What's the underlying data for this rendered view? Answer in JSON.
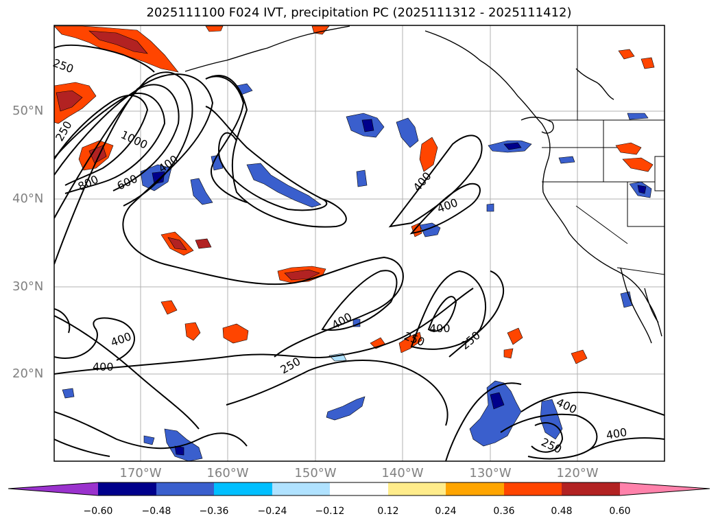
{
  "title": "2025111100 F024 IVT, precipitation PC (2025111312 - 2025111412)",
  "lat_labels": [
    "50°N",
    "40°N",
    "30°N",
    "20°N"
  ],
  "lon_labels": [
    "170°W",
    "160°W",
    "150°W",
    "140°W",
    "130°W",
    "120°W"
  ],
  "contour_labels": [
    "250",
    "1000",
    "800",
    "600",
    "400",
    "250",
    "400",
    "400",
    "400",
    "250",
    "400",
    "250",
    "250",
    "400",
    "400",
    "250",
    "400",
    "400"
  ],
  "colorbar": {
    "ticks": [
      "−0.60",
      "−0.48",
      "−0.36",
      "−0.24",
      "−0.12",
      "0.12",
      "0.24",
      "0.36",
      "0.48",
      "0.60"
    ],
    "colors": [
      "#9a32cd",
      "#00008b",
      "#3a5fcd",
      "#00bfff",
      "#b0e2ff",
      "#ffffff",
      "#ffec8b",
      "#ffa500",
      "#ff4500",
      "#b22222",
      "#ff82ab"
    ]
  },
  "colors": {
    "contour": "#000000",
    "coast": "#000000",
    "grid": "#a9a9a9",
    "axis_text": "#808080"
  }
}
